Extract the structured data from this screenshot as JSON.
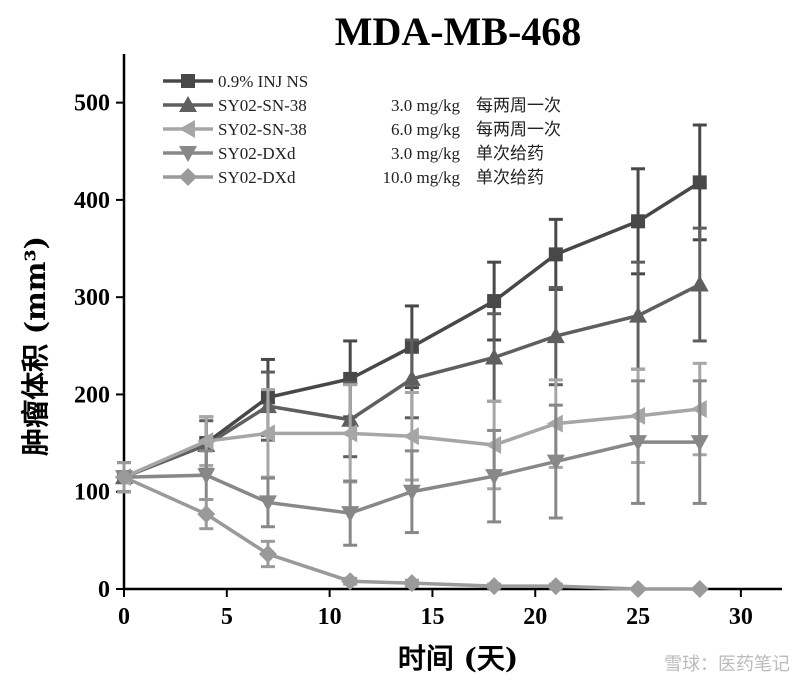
{
  "chart_data": {
    "type": "line",
    "title": "MDA-MB-468",
    "xlabel": "时间 (天)",
    "ylabel": "肿瘤体积 (mm³)",
    "xlim": [
      0,
      32
    ],
    "ylim": [
      0,
      550
    ],
    "xticks": [
      0,
      5,
      10,
      15,
      20,
      25,
      30
    ],
    "yticks": [
      0,
      100,
      200,
      300,
      400,
      500
    ],
    "grid": false,
    "legend_position": "top-left",
    "x": [
      0,
      4,
      7,
      11,
      14,
      18,
      21,
      25,
      28
    ],
    "series": [
      {
        "name": "0.9%   INJ NS",
        "dose": "",
        "schedule": "",
        "marker": "square",
        "color": "#484848",
        "values": [
          115,
          150,
          197,
          216,
          249,
          296,
          344,
          378,
          418
        ],
        "errors": [
          15,
          27,
          39,
          39,
          42,
          40,
          36,
          54,
          59
        ]
      },
      {
        "name": "SY02-SN-38",
        "dose": "3.0 mg/kg",
        "schedule": "每两周一次",
        "marker": "triangle-up",
        "color": "#5f5f5f",
        "values": [
          115,
          148,
          188,
          174,
          216,
          238,
          260,
          281,
          313
        ],
        "errors": [
          15,
          25,
          35,
          38,
          40,
          45,
          50,
          55,
          58
        ]
      },
      {
        "name": "SY02-SN-38",
        "dose": "6.0 mg/kg",
        "schedule": "每两周一次",
        "marker": "triangle-left",
        "color": "#a6a6a6",
        "values": [
          115,
          152,
          160,
          160,
          157,
          148,
          170,
          178,
          185
        ],
        "errors": [
          15,
          25,
          45,
          50,
          45,
          45,
          45,
          48,
          47
        ]
      },
      {
        "name": "SY02-DXd",
        "dose": "3.0 mg/kg",
        "schedule": "单次给药",
        "marker": "triangle-down",
        "color": "#888888",
        "values": [
          115,
          117,
          89,
          78,
          100,
          116,
          131,
          151,
          151
        ],
        "errors": [
          15,
          25,
          25,
          33,
          42,
          47,
          58,
          63,
          63
        ]
      },
      {
        "name": "SY02-DXd",
        "dose": "10.0 mg/kg",
        "schedule": "单次给药",
        "marker": "diamond",
        "color": "#9a9a9a",
        "values": [
          115,
          77,
          36,
          8,
          6,
          3,
          3,
          0,
          0
        ],
        "errors": [
          15,
          15,
          13,
          3,
          3,
          2,
          2,
          1,
          1
        ]
      }
    ]
  },
  "watermark": "雪球：医药笔记"
}
